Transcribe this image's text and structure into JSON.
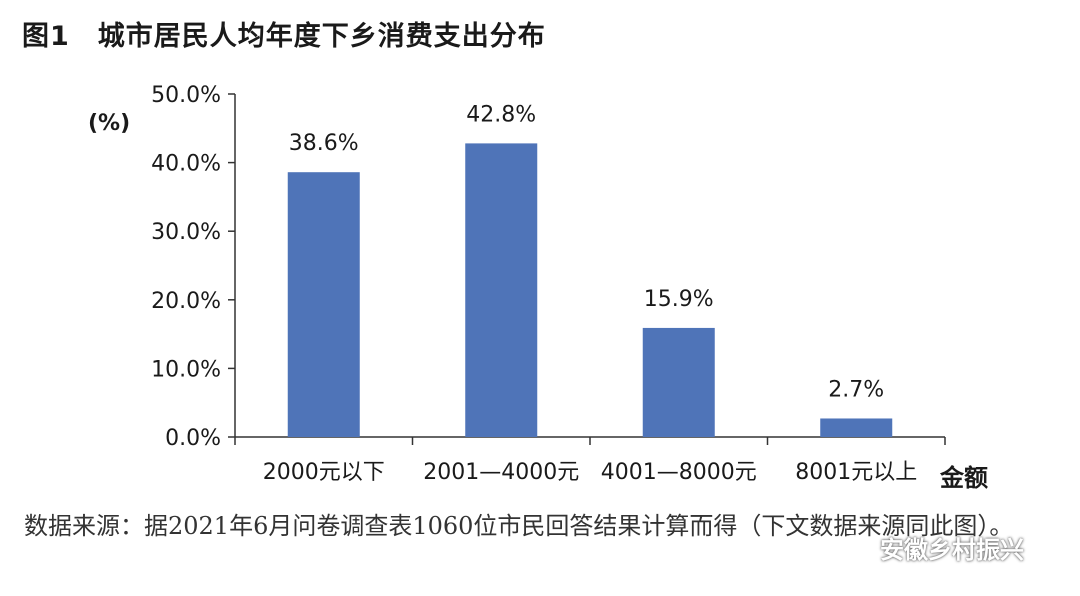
{
  "figure": {
    "number": "图1",
    "title": "城市居民人均年度下乡消费支出分布",
    "source": "数据来源：据2021年6月问卷调查表1060位市民回答结果计算而得（下文数据来源同此图）。",
    "watermark": "安徽乡村振兴"
  },
  "chart_data": {
    "type": "bar",
    "title": "城市居民人均年度下乡消费支出分布",
    "categories": [
      "2000元以下",
      "2001—4000元",
      "4001—8000元",
      "8001元以上"
    ],
    "values": [
      38.6,
      42.8,
      15.9,
      2.7
    ],
    "data_labels": [
      "38.6%",
      "42.8%",
      "15.9%",
      "2.7%"
    ],
    "xlabel": "金额",
    "ylabel": "(%)",
    "ylim": [
      0,
      50
    ],
    "yticks": [
      0,
      10,
      20,
      30,
      40,
      50
    ],
    "ytick_labels": [
      "0.0%",
      "10.0%",
      "20.0%",
      "30.0%",
      "40.0%",
      "50.0%"
    ],
    "bar_color": "#4f74b8",
    "grid": false,
    "legend": "none"
  }
}
